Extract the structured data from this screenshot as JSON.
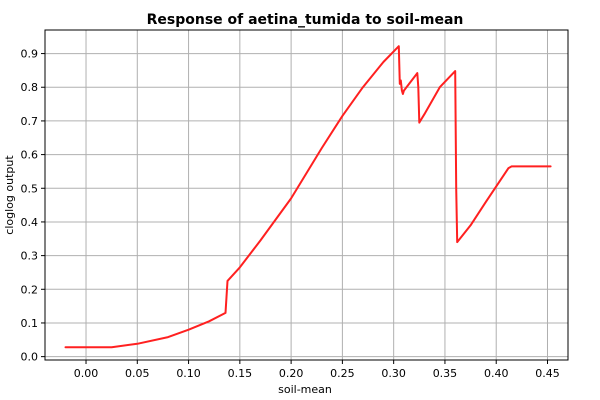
{
  "chart_data": {
    "type": "line",
    "title": "Response of aetina_tumida to soil-mean",
    "xlabel": "soil-mean",
    "ylabel": "cloglog output",
    "xlim": [
      -0.04,
      0.47
    ],
    "ylim": [
      -0.01,
      0.97
    ],
    "xticks": [
      0.0,
      0.05,
      0.1,
      0.15,
      0.2,
      0.25,
      0.3,
      0.35,
      0.4,
      0.45
    ],
    "xtick_labels": [
      "0.00",
      "0.05",
      "0.10",
      "0.15",
      "0.20",
      "0.25",
      "0.30",
      "0.35",
      "0.40",
      "0.45"
    ],
    "yticks": [
      0.0,
      0.1,
      0.2,
      0.3,
      0.4,
      0.5,
      0.6,
      0.7,
      0.8,
      0.9
    ],
    "ytick_labels": [
      "0.0",
      "0.1",
      "0.2",
      "0.3",
      "0.4",
      "0.5",
      "0.6",
      "0.7",
      "0.8",
      "0.9"
    ],
    "grid": true,
    "series": [
      {
        "color": "#ff2020",
        "x": [
          -0.02,
          0.0,
          0.025,
          0.05,
          0.08,
          0.1,
          0.12,
          0.136,
          0.138,
          0.15,
          0.17,
          0.2,
          0.23,
          0.25,
          0.27,
          0.29,
          0.305,
          0.306,
          0.307,
          0.308,
          0.309,
          0.31,
          0.323,
          0.324,
          0.325,
          0.326,
          0.33,
          0.345,
          0.36,
          0.361,
          0.362,
          0.375,
          0.39,
          0.412,
          0.415,
          0.453
        ],
        "y": [
          0.028,
          0.028,
          0.028,
          0.038,
          0.058,
          0.08,
          0.105,
          0.13,
          0.225,
          0.265,
          0.345,
          0.47,
          0.62,
          0.715,
          0.8,
          0.875,
          0.922,
          0.81,
          0.82,
          0.79,
          0.78,
          0.79,
          0.842,
          0.8,
          0.695,
          0.7,
          0.72,
          0.8,
          0.848,
          0.5,
          0.34,
          0.39,
          0.46,
          0.56,
          0.565,
          0.565
        ]
      }
    ]
  }
}
